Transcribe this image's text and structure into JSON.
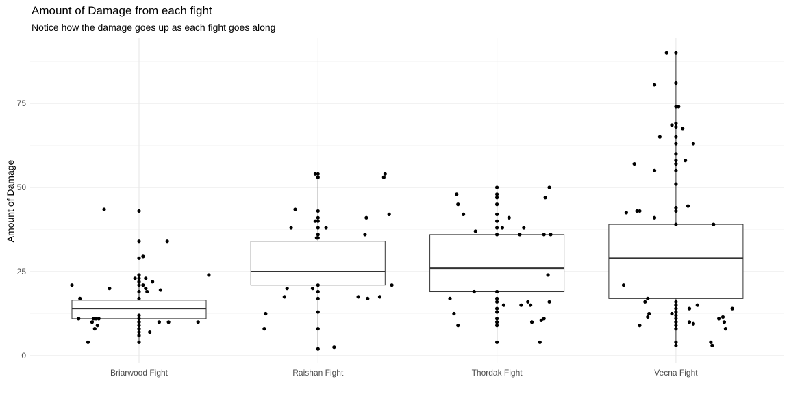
{
  "chart_data": {
    "type": "boxplot",
    "title": "Amount of Damage from each fight",
    "subtitle": "Notice how the damage goes up as each fight goes along",
    "xlabel": "",
    "ylabel": "Amount of Damage",
    "ylim": [
      -2,
      94
    ],
    "yticks": [
      0,
      25,
      50,
      75
    ],
    "grid": true,
    "categories": [
      "Briarwood Fight",
      "Raishan Fight",
      "Thordak Fight",
      "Vecna Fight"
    ],
    "boxes": [
      {
        "category": "Briarwood Fight",
        "q1": 11,
        "median": 14,
        "q3": 16.5,
        "whisker_low": 4,
        "whisker_high": 24
      },
      {
        "category": "Raishan Fight",
        "q1": 21,
        "median": 25,
        "q3": 34,
        "whisker_low": 2,
        "whisker_high": 54
      },
      {
        "category": "Thordak Fight",
        "q1": 19,
        "median": 26,
        "q3": 36,
        "whisker_low": 4,
        "whisker_high": 50
      },
      {
        "category": "Vecna Fight",
        "q1": 17,
        "median": 29,
        "q3": 39,
        "whisker_low": 3,
        "whisker_high": 90
      }
    ],
    "points": [
      {
        "category": "Briarwood Fight",
        "jitter": 0.0,
        "y": 43
      },
      {
        "category": "Briarwood Fight",
        "jitter": 0.0,
        "y": 34
      },
      {
        "category": "Briarwood Fight",
        "jitter": 0.0,
        "y": 29
      },
      {
        "category": "Briarwood Fight",
        "jitter": 0.0,
        "y": 24
      },
      {
        "category": "Briarwood Fight",
        "jitter": 0.0,
        "y": 23
      },
      {
        "category": "Briarwood Fight",
        "jitter": 0.0,
        "y": 22
      },
      {
        "category": "Briarwood Fight",
        "jitter": 0.0,
        "y": 21
      },
      {
        "category": "Briarwood Fight",
        "jitter": 0.0,
        "y": 19
      },
      {
        "category": "Briarwood Fight",
        "jitter": 0.0,
        "y": 17
      },
      {
        "category": "Briarwood Fight",
        "jitter": 0.0,
        "y": 12
      },
      {
        "category": "Briarwood Fight",
        "jitter": 0.0,
        "y": 11
      },
      {
        "category": "Briarwood Fight",
        "jitter": 0.0,
        "y": 10
      },
      {
        "category": "Briarwood Fight",
        "jitter": 0.0,
        "y": 9
      },
      {
        "category": "Briarwood Fight",
        "jitter": 0.0,
        "y": 8
      },
      {
        "category": "Briarwood Fight",
        "jitter": 0.0,
        "y": 7
      },
      {
        "category": "Briarwood Fight",
        "jitter": 0.0,
        "y": 6
      },
      {
        "category": "Briarwood Fight",
        "jitter": 0.0,
        "y": 4
      },
      {
        "category": "Briarwood Fight",
        "jitter": -0.26,
        "y": 43.5
      },
      {
        "category": "Briarwood Fight",
        "jitter": 0.21,
        "y": 34
      },
      {
        "category": "Briarwood Fight",
        "jitter": 0.03,
        "y": 29.5
      },
      {
        "category": "Briarwood Fight",
        "jitter": -0.03,
        "y": 23
      },
      {
        "category": "Briarwood Fight",
        "jitter": 0.05,
        "y": 23
      },
      {
        "category": "Briarwood Fight",
        "jitter": 0.1,
        "y": 22
      },
      {
        "category": "Briarwood Fight",
        "jitter": 0.03,
        "y": 21
      },
      {
        "category": "Briarwood Fight",
        "jitter": 0.05,
        "y": 20
      },
      {
        "category": "Briarwood Fight",
        "jitter": -0.22,
        "y": 20
      },
      {
        "category": "Briarwood Fight",
        "jitter": -0.5,
        "y": 21
      },
      {
        "category": "Briarwood Fight",
        "jitter": 0.52,
        "y": 24
      },
      {
        "category": "Briarwood Fight",
        "jitter": 0.06,
        "y": 19
      },
      {
        "category": "Briarwood Fight",
        "jitter": 0.16,
        "y": 19.5
      },
      {
        "category": "Briarwood Fight",
        "jitter": -0.44,
        "y": 17
      },
      {
        "category": "Briarwood Fight",
        "jitter": -0.45,
        "y": 11
      },
      {
        "category": "Briarwood Fight",
        "jitter": -0.3,
        "y": 11
      },
      {
        "category": "Briarwood Fight",
        "jitter": -0.32,
        "y": 11
      },
      {
        "category": "Briarwood Fight",
        "jitter": -0.34,
        "y": 11
      },
      {
        "category": "Briarwood Fight",
        "jitter": 0.44,
        "y": 10
      },
      {
        "category": "Briarwood Fight",
        "jitter": -0.35,
        "y": 10
      },
      {
        "category": "Briarwood Fight",
        "jitter": 0.15,
        "y": 10
      },
      {
        "category": "Briarwood Fight",
        "jitter": 0.22,
        "y": 10
      },
      {
        "category": "Briarwood Fight",
        "jitter": -0.31,
        "y": 9
      },
      {
        "category": "Briarwood Fight",
        "jitter": -0.33,
        "y": 8
      },
      {
        "category": "Briarwood Fight",
        "jitter": 0.08,
        "y": 7
      },
      {
        "category": "Briarwood Fight",
        "jitter": -0.38,
        "y": 4
      },
      {
        "category": "Raishan Fight",
        "jitter": 0.0,
        "y": 54
      },
      {
        "category": "Raishan Fight",
        "jitter": 0.0,
        "y": 53
      },
      {
        "category": "Raishan Fight",
        "jitter": 0.0,
        "y": 43
      },
      {
        "category": "Raishan Fight",
        "jitter": 0.0,
        "y": 41
      },
      {
        "category": "Raishan Fight",
        "jitter": 0.0,
        "y": 40
      },
      {
        "category": "Raishan Fight",
        "jitter": 0.0,
        "y": 38
      },
      {
        "category": "Raishan Fight",
        "jitter": 0.0,
        "y": 36
      },
      {
        "category": "Raishan Fight",
        "jitter": 0.0,
        "y": 35
      },
      {
        "category": "Raishan Fight",
        "jitter": 0.0,
        "y": 21
      },
      {
        "category": "Raishan Fight",
        "jitter": 0.0,
        "y": 19
      },
      {
        "category": "Raishan Fight",
        "jitter": 0.0,
        "y": 17
      },
      {
        "category": "Raishan Fight",
        "jitter": 0.0,
        "y": 13
      },
      {
        "category": "Raishan Fight",
        "jitter": 0.0,
        "y": 8
      },
      {
        "category": "Raishan Fight",
        "jitter": 0.0,
        "y": 2
      },
      {
        "category": "Raishan Fight",
        "jitter": -0.02,
        "y": 54
      },
      {
        "category": "Raishan Fight",
        "jitter": -0.02,
        "y": 40
      },
      {
        "category": "Raishan Fight",
        "jitter": 0.06,
        "y": 38
      },
      {
        "category": "Raishan Fight",
        "jitter": -0.01,
        "y": 35
      },
      {
        "category": "Raishan Fight",
        "jitter": -0.04,
        "y": 20
      },
      {
        "category": "Raishan Fight",
        "jitter": 0.5,
        "y": 54
      },
      {
        "category": "Raishan Fight",
        "jitter": 0.49,
        "y": 53
      },
      {
        "category": "Raishan Fight",
        "jitter": -0.17,
        "y": 43.5
      },
      {
        "category": "Raishan Fight",
        "jitter": 0.36,
        "y": 41
      },
      {
        "category": "Raishan Fight",
        "jitter": -0.2,
        "y": 38
      },
      {
        "category": "Raishan Fight",
        "jitter": 0.53,
        "y": 42
      },
      {
        "category": "Raishan Fight",
        "jitter": 0.35,
        "y": 36
      },
      {
        "category": "Raishan Fight",
        "jitter": 0.55,
        "y": 21
      },
      {
        "category": "Raishan Fight",
        "jitter": -0.23,
        "y": 20
      },
      {
        "category": "Raishan Fight",
        "jitter": -0.25,
        "y": 17.5
      },
      {
        "category": "Raishan Fight",
        "jitter": 0.3,
        "y": 17.5
      },
      {
        "category": "Raishan Fight",
        "jitter": 0.37,
        "y": 17
      },
      {
        "category": "Raishan Fight",
        "jitter": 0.46,
        "y": 17.5
      },
      {
        "category": "Raishan Fight",
        "jitter": -0.39,
        "y": 12.5
      },
      {
        "category": "Raishan Fight",
        "jitter": -0.4,
        "y": 8
      },
      {
        "category": "Raishan Fight",
        "jitter": 0.12,
        "y": 2.5
      },
      {
        "category": "Thordak Fight",
        "jitter": 0.0,
        "y": 50
      },
      {
        "category": "Thordak Fight",
        "jitter": 0.0,
        "y": 48
      },
      {
        "category": "Thordak Fight",
        "jitter": 0.0,
        "y": 47
      },
      {
        "category": "Thordak Fight",
        "jitter": 0.0,
        "y": 45
      },
      {
        "category": "Thordak Fight",
        "jitter": 0.0,
        "y": 42
      },
      {
        "category": "Thordak Fight",
        "jitter": 0.0,
        "y": 40
      },
      {
        "category": "Thordak Fight",
        "jitter": 0.0,
        "y": 38
      },
      {
        "category": "Thordak Fight",
        "jitter": 0.0,
        "y": 36
      },
      {
        "category": "Thordak Fight",
        "jitter": 0.0,
        "y": 19
      },
      {
        "category": "Thordak Fight",
        "jitter": 0.0,
        "y": 17
      },
      {
        "category": "Thordak Fight",
        "jitter": 0.0,
        "y": 16
      },
      {
        "category": "Thordak Fight",
        "jitter": 0.0,
        "y": 14
      },
      {
        "category": "Thordak Fight",
        "jitter": 0.0,
        "y": 13
      },
      {
        "category": "Thordak Fight",
        "jitter": 0.0,
        "y": 11
      },
      {
        "category": "Thordak Fight",
        "jitter": 0.0,
        "y": 10
      },
      {
        "category": "Thordak Fight",
        "jitter": 0.0,
        "y": 9
      },
      {
        "category": "Thordak Fight",
        "jitter": 0.0,
        "y": 4
      },
      {
        "category": "Thordak Fight",
        "jitter": -0.3,
        "y": 48
      },
      {
        "category": "Thordak Fight",
        "jitter": -0.29,
        "y": 45
      },
      {
        "category": "Thordak Fight",
        "jitter": -0.25,
        "y": 42
      },
      {
        "category": "Thordak Fight",
        "jitter": -0.16,
        "y": 37
      },
      {
        "category": "Thordak Fight",
        "jitter": 0.04,
        "y": 38
      },
      {
        "category": "Thordak Fight",
        "jitter": 0.09,
        "y": 41
      },
      {
        "category": "Thordak Fight",
        "jitter": 0.2,
        "y": 38
      },
      {
        "category": "Thordak Fight",
        "jitter": 0.17,
        "y": 36
      },
      {
        "category": "Thordak Fight",
        "jitter": 0.36,
        "y": 47
      },
      {
        "category": "Thordak Fight",
        "jitter": 0.39,
        "y": 50
      },
      {
        "category": "Thordak Fight",
        "jitter": 0.35,
        "y": 36
      },
      {
        "category": "Thordak Fight",
        "jitter": 0.4,
        "y": 36
      },
      {
        "category": "Thordak Fight",
        "jitter": 0.38,
        "y": 24
      },
      {
        "category": "Thordak Fight",
        "jitter": 0.39,
        "y": 16
      },
      {
        "category": "Thordak Fight",
        "jitter": -0.35,
        "y": 17
      },
      {
        "category": "Thordak Fight",
        "jitter": -0.17,
        "y": 19
      },
      {
        "category": "Thordak Fight",
        "jitter": -0.32,
        "y": 12.5
      },
      {
        "category": "Thordak Fight",
        "jitter": -0.29,
        "y": 9
      },
      {
        "category": "Thordak Fight",
        "jitter": 0.23,
        "y": 16
      },
      {
        "category": "Thordak Fight",
        "jitter": 0.18,
        "y": 15
      },
      {
        "category": "Thordak Fight",
        "jitter": 0.25,
        "y": 15
      },
      {
        "category": "Thordak Fight",
        "jitter": 0.05,
        "y": 15
      },
      {
        "category": "Thordak Fight",
        "jitter": 0.33,
        "y": 10.5
      },
      {
        "category": "Thordak Fight",
        "jitter": 0.26,
        "y": 10
      },
      {
        "category": "Thordak Fight",
        "jitter": 0.35,
        "y": 11
      },
      {
        "category": "Thordak Fight",
        "jitter": 0.32,
        "y": 4
      },
      {
        "category": "Vecna Fight",
        "jitter": 0.0,
        "y": 90
      },
      {
        "category": "Vecna Fight",
        "jitter": 0.0,
        "y": 81
      },
      {
        "category": "Vecna Fight",
        "jitter": 0.0,
        "y": 74
      },
      {
        "category": "Vecna Fight",
        "jitter": 0.0,
        "y": 69
      },
      {
        "category": "Vecna Fight",
        "jitter": 0.0,
        "y": 68
      },
      {
        "category": "Vecna Fight",
        "jitter": 0.0,
        "y": 65
      },
      {
        "category": "Vecna Fight",
        "jitter": 0.0,
        "y": 63
      },
      {
        "category": "Vecna Fight",
        "jitter": 0.0,
        "y": 60
      },
      {
        "category": "Vecna Fight",
        "jitter": 0.0,
        "y": 58
      },
      {
        "category": "Vecna Fight",
        "jitter": 0.0,
        "y": 57
      },
      {
        "category": "Vecna Fight",
        "jitter": 0.0,
        "y": 55
      },
      {
        "category": "Vecna Fight",
        "jitter": 0.0,
        "y": 51
      },
      {
        "category": "Vecna Fight",
        "jitter": 0.0,
        "y": 44
      },
      {
        "category": "Vecna Fight",
        "jitter": 0.0,
        "y": 43
      },
      {
        "category": "Vecna Fight",
        "jitter": 0.0,
        "y": 39
      },
      {
        "category": "Vecna Fight",
        "jitter": 0.0,
        "y": 16
      },
      {
        "category": "Vecna Fight",
        "jitter": 0.0,
        "y": 15
      },
      {
        "category": "Vecna Fight",
        "jitter": 0.0,
        "y": 14
      },
      {
        "category": "Vecna Fight",
        "jitter": 0.0,
        "y": 13
      },
      {
        "category": "Vecna Fight",
        "jitter": 0.0,
        "y": 12
      },
      {
        "category": "Vecna Fight",
        "jitter": 0.0,
        "y": 11
      },
      {
        "category": "Vecna Fight",
        "jitter": 0.0,
        "y": 10
      },
      {
        "category": "Vecna Fight",
        "jitter": 0.0,
        "y": 9
      },
      {
        "category": "Vecna Fight",
        "jitter": 0.0,
        "y": 8
      },
      {
        "category": "Vecna Fight",
        "jitter": 0.0,
        "y": 4
      },
      {
        "category": "Vecna Fight",
        "jitter": 0.0,
        "y": 3
      },
      {
        "category": "Vecna Fight",
        "jitter": -0.07,
        "y": 90
      },
      {
        "category": "Vecna Fight",
        "jitter": -0.16,
        "y": 80.5
      },
      {
        "category": "Vecna Fight",
        "jitter": 0.02,
        "y": 74
      },
      {
        "category": "Vecna Fight",
        "jitter": -0.03,
        "y": 68.5
      },
      {
        "category": "Vecna Fight",
        "jitter": 0.05,
        "y": 67.5
      },
      {
        "category": "Vecna Fight",
        "jitter": -0.12,
        "y": 65
      },
      {
        "category": "Vecna Fight",
        "jitter": 0.13,
        "y": 63
      },
      {
        "category": "Vecna Fight",
        "jitter": 0.07,
        "y": 58
      },
      {
        "category": "Vecna Fight",
        "jitter": -0.31,
        "y": 57
      },
      {
        "category": "Vecna Fight",
        "jitter": -0.16,
        "y": 55
      },
      {
        "category": "Vecna Fight",
        "jitter": 0.09,
        "y": 44.5
      },
      {
        "category": "Vecna Fight",
        "jitter": -0.29,
        "y": 43
      },
      {
        "category": "Vecna Fight",
        "jitter": -0.37,
        "y": 42.5
      },
      {
        "category": "Vecna Fight",
        "jitter": -0.27,
        "y": 43
      },
      {
        "category": "Vecna Fight",
        "jitter": -0.16,
        "y": 41
      },
      {
        "category": "Vecna Fight",
        "jitter": 0.28,
        "y": 39
      },
      {
        "category": "Vecna Fight",
        "jitter": -0.39,
        "y": 21
      },
      {
        "category": "Vecna Fight",
        "jitter": -0.21,
        "y": 17
      },
      {
        "category": "Vecna Fight",
        "jitter": -0.23,
        "y": 16
      },
      {
        "category": "Vecna Fight",
        "jitter": 0.16,
        "y": 15
      },
      {
        "category": "Vecna Fight",
        "jitter": -0.2,
        "y": 12.5
      },
      {
        "category": "Vecna Fight",
        "jitter": -0.21,
        "y": 11.5
      },
      {
        "category": "Vecna Fight",
        "jitter": 0.1,
        "y": 14
      },
      {
        "category": "Vecna Fight",
        "jitter": -0.27,
        "y": 9
      },
      {
        "category": "Vecna Fight",
        "jitter": -0.03,
        "y": 12.5
      },
      {
        "category": "Vecna Fight",
        "jitter": 0.1,
        "y": 10
      },
      {
        "category": "Vecna Fight",
        "jitter": 0.13,
        "y": 9.5
      },
      {
        "category": "Vecna Fight",
        "jitter": 0.32,
        "y": 11
      },
      {
        "category": "Vecna Fight",
        "jitter": 0.35,
        "y": 11.5
      },
      {
        "category": "Vecna Fight",
        "jitter": 0.36,
        "y": 10
      },
      {
        "category": "Vecna Fight",
        "jitter": 0.37,
        "y": 8
      },
      {
        "category": "Vecna Fight",
        "jitter": 0.42,
        "y": 14
      },
      {
        "category": "Vecna Fight",
        "jitter": 0.26,
        "y": 4
      },
      {
        "category": "Vecna Fight",
        "jitter": 0.27,
        "y": 3
      }
    ]
  }
}
